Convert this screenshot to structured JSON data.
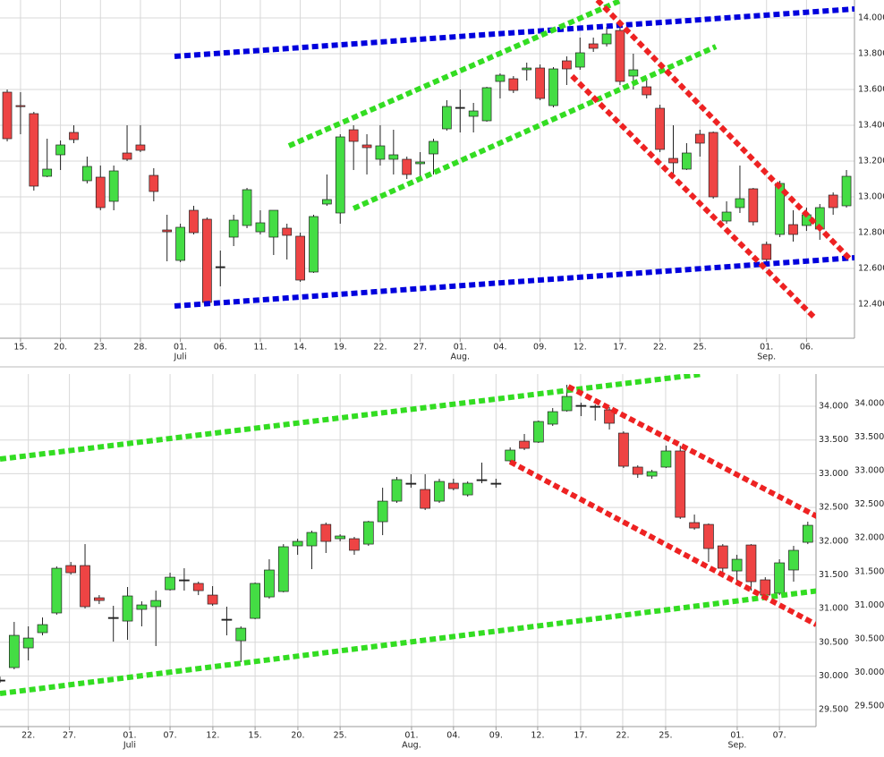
{
  "chart_data": [
    {
      "type": "candlestick",
      "up_color": "#44dd44",
      "down_color": "#ee4444",
      "grid": true,
      "xlim": [
        -0.54,
        63.6
      ],
      "ylim": [
        12210,
        14100
      ],
      "yticks": [
        {
          "value": 12400,
          "label": "12.400"
        },
        {
          "value": 12600,
          "label": "12.600"
        },
        {
          "value": 12800,
          "label": "12.800"
        },
        {
          "value": 13000,
          "label": "13.000"
        },
        {
          "value": 13200,
          "label": "13.200"
        },
        {
          "value": 13400,
          "label": "13.400"
        },
        {
          "value": 13600,
          "label": "13.600"
        },
        {
          "value": 13800,
          "label": "13.800"
        },
        {
          "value": 14000,
          "label": "14.000"
        }
      ],
      "xticks": [
        {
          "value": 1,
          "label": "15."
        },
        {
          "value": 4,
          "label": "20."
        },
        {
          "value": 7,
          "label": "23."
        },
        {
          "value": 10,
          "label": "28."
        },
        {
          "value": 13,
          "label": "01."
        },
        {
          "value": 16,
          "label": "06."
        },
        {
          "value": 19,
          "label": "11."
        },
        {
          "value": 22,
          "label": "14."
        },
        {
          "value": 25,
          "label": "19."
        },
        {
          "value": 28,
          "label": "22."
        },
        {
          "value": 31,
          "label": "27."
        },
        {
          "value": 34,
          "label": "01."
        },
        {
          "value": 37,
          "label": "04."
        },
        {
          "value": 40,
          "label": "09."
        },
        {
          "value": 43,
          "label": "12."
        },
        {
          "value": 46,
          "label": "17."
        },
        {
          "value": 49,
          "label": "22."
        },
        {
          "value": 52,
          "label": "25."
        },
        {
          "value": 57,
          "label": "01."
        },
        {
          "value": 60,
          "label": "06."
        }
      ],
      "month_labels": [
        {
          "value": 13,
          "label": "Juli"
        },
        {
          "value": 34,
          "label": "Aug."
        },
        {
          "value": 57,
          "label": "Sep."
        }
      ],
      "open": [
        13585,
        13510,
        13465,
        13115,
        13235,
        13360,
        13090,
        13110,
        12975,
        13245,
        13290,
        13120,
        12815,
        12645,
        12925,
        12875,
        12610,
        12775,
        12840,
        12805,
        12775,
        12825,
        12780,
        12580,
        12960,
        12910,
        13375,
        13290,
        13210,
        13210,
        13210,
        13185,
        13240,
        13380,
        13500,
        13450,
        13425,
        13645,
        13660,
        13710,
        13720,
        13510,
        13760,
        13725,
        13855,
        13855,
        13930,
        13675,
        13615,
        13495,
        13215,
        13155,
        13350,
        13360,
        12865,
        12940,
        13045,
        12735,
        12790,
        12845,
        12840,
        12820,
        13010,
        12950
      ],
      "high": [
        13600,
        13585,
        13475,
        13325,
        13315,
        13400,
        13225,
        13175,
        13175,
        13400,
        13400,
        13160,
        12900,
        12850,
        12950,
        12885,
        12700,
        12900,
        13050,
        12925,
        12925,
        12850,
        12800,
        12900,
        13125,
        13350,
        13400,
        13350,
        13400,
        13375,
        13225,
        13250,
        13325,
        13540,
        13600,
        13525,
        13615,
        13690,
        13675,
        13750,
        13740,
        13725,
        13785,
        13890,
        13890,
        13950,
        13950,
        13800,
        13650,
        13515,
        13400,
        13300,
        13375,
        13365,
        12975,
        13175,
        13050,
        12750,
        13090,
        12925,
        12940,
        12960,
        13025,
        13150
      ],
      "low": [
        13310,
        13350,
        13035,
        13110,
        13150,
        13300,
        13075,
        12925,
        12925,
        13200,
        13250,
        12975,
        12640,
        12635,
        12790,
        12400,
        12500,
        12725,
        12825,
        12790,
        12675,
        12650,
        12525,
        12575,
        12950,
        12850,
        13150,
        13125,
        13175,
        13125,
        13100,
        13100,
        13125,
        13370,
        13360,
        13360,
        13420,
        13550,
        13580,
        13650,
        13540,
        13500,
        13625,
        13710,
        13810,
        13840,
        13625,
        13600,
        13550,
        13250,
        13125,
        13150,
        13225,
        12990,
        12850,
        12910,
        12840,
        12610,
        12775,
        12750,
        12810,
        12760,
        12900,
        12940
      ],
      "close": [
        13325,
        13505,
        13060,
        13155,
        13290,
        13320,
        13170,
        12940,
        13145,
        13210,
        13260,
        13030,
        12805,
        12830,
        12800,
        12410,
        12610,
        12870,
        13040,
        12855,
        12925,
        12785,
        12535,
        12890,
        12985,
        13335,
        13310,
        13275,
        13285,
        13235,
        13125,
        13195,
        13310,
        13505,
        13500,
        13480,
        13610,
        13680,
        13595,
        13720,
        13550,
        13715,
        13715,
        13805,
        13830,
        13910,
        13645,
        13710,
        13570,
        13265,
        13190,
        13245,
        13300,
        13000,
        12915,
        12990,
        12860,
        12650,
        13075,
        12790,
        12900,
        12940,
        12940,
        13115
      ],
      "trendlines": [
        {
          "color": "#0000dd",
          "x": [
            12.56,
            63.6
          ],
          "values": [
            13785,
            14050
          ]
        },
        {
          "color": "#0000dd",
          "x": [
            12.56,
            63.6
          ],
          "values": [
            12390,
            12660
          ]
        },
        {
          "color": "#33dd22",
          "x": [
            21.15,
            46.13
          ],
          "values": [
            13285,
            14100
          ]
        },
        {
          "color": "#33dd22",
          "x": [
            26.0,
            53.2
          ],
          "values": [
            12935,
            13840
          ]
        },
        {
          "color": "#ee2222",
          "x": [
            44.3,
            63.3
          ],
          "values": [
            14100,
            12650
          ]
        },
        {
          "color": "#ee2222",
          "x": [
            42.4,
            60.6
          ],
          "values": [
            13675,
            12325
          ]
        }
      ]
    },
    {
      "type": "candlestick",
      "up_color": "#44dd44",
      "down_color": "#ee4444",
      "grid": true,
      "xlim": [
        0,
        57.58
      ],
      "ylim": [
        29250,
        34478
      ],
      "y2lim": [
        29194,
        34439
      ],
      "yticks": [
        {
          "value": 29500,
          "label": "29.500"
        },
        {
          "value": 30000,
          "label": "30.000"
        },
        {
          "value": 30500,
          "label": "30.500"
        },
        {
          "value": 31000,
          "label": "31.000"
        },
        {
          "value": 31500,
          "label": "31.500"
        },
        {
          "value": 32000,
          "label": "32.000"
        },
        {
          "value": 32500,
          "label": "32.500"
        },
        {
          "value": 33000,
          "label": "33.000"
        },
        {
          "value": 33500,
          "label": "33.500"
        },
        {
          "value": 34000,
          "label": "34.000"
        }
      ],
      "y2ticks": [
        {
          "value": 29500,
          "label": "29.500"
        },
        {
          "value": 30000,
          "label": "30.000"
        },
        {
          "value": 30500,
          "label": "30.500"
        },
        {
          "value": 31000,
          "label": "31.000"
        },
        {
          "value": 31500,
          "label": "31.500"
        },
        {
          "value": 32000,
          "label": "32.000"
        },
        {
          "value": 32500,
          "label": "32.500"
        },
        {
          "value": 33000,
          "label": "33.000"
        },
        {
          "value": 33500,
          "label": "33.500"
        },
        {
          "value": 34000,
          "label": "34.000"
        }
      ],
      "xticks": [
        {
          "value": 2,
          "label": "22."
        },
        {
          "value": 4.9,
          "label": "27."
        },
        {
          "value": 9.15,
          "label": "01."
        },
        {
          "value": 12,
          "label": "07."
        },
        {
          "value": 15.02,
          "label": "12."
        },
        {
          "value": 18,
          "label": "15."
        },
        {
          "value": 21.02,
          "label": "20."
        },
        {
          "value": 24,
          "label": "25."
        },
        {
          "value": 29.04,
          "label": "01."
        },
        {
          "value": 32,
          "label": "04."
        },
        {
          "value": 35,
          "label": "09."
        },
        {
          "value": 37.94,
          "label": "12."
        },
        {
          "value": 40.97,
          "label": "17."
        },
        {
          "value": 43.94,
          "label": "22."
        },
        {
          "value": 46.97,
          "label": "25."
        },
        {
          "value": 52.02,
          "label": "01."
        },
        {
          "value": 55,
          "label": "07."
        }
      ],
      "month_labels": [
        {
          "value": 9.15,
          "label": "Juli"
        },
        {
          "value": 29.04,
          "label": "Aug."
        },
        {
          "value": 52.02,
          "label": "Sep."
        }
      ],
      "open": [
        29940,
        30125,
        30417,
        30643,
        30935,
        31638,
        31638,
        31160,
        30868,
        30815,
        30988,
        31028,
        31280,
        31426,
        31373,
        31200,
        30842,
        30523,
        30855,
        31173,
        31253,
        31930,
        31930,
        32248,
        32036,
        32036,
        31956,
        32288,
        32593,
        32859,
        32766,
        32593,
        32859,
        32686,
        32912,
        32859,
        33191,
        33482,
        33469,
        33735,
        33934,
        34013,
        34000,
        33947,
        33602,
        33098,
        32965,
        33098,
        33337,
        32275,
        32248,
        31930,
        31558,
        31943,
        31426,
        31227,
        31572,
        31983
      ],
      "high": [
        29990,
        30802,
        30736,
        30868,
        31625,
        31691,
        31956,
        31200,
        31041,
        31320,
        31107,
        31266,
        31532,
        31598,
        31399,
        31333,
        31028,
        30736,
        31386,
        31731,
        31956,
        32036,
        32155,
        32275,
        32102,
        32063,
        32301,
        32792,
        32952,
        32992,
        32992,
        32925,
        32925,
        32885,
        33164,
        32925,
        33390,
        33589,
        33788,
        33973,
        34318,
        34053,
        34027,
        33987,
        33628,
        33124,
        33058,
        33416,
        33416,
        32394,
        32262,
        31956,
        31797,
        31956,
        31465,
        31731,
        31930,
        32288
      ],
      "low": [
        29900,
        30099,
        30231,
        30603,
        30908,
        31505,
        31001,
        31067,
        30510,
        30537,
        30736,
        30444,
        31266,
        31266,
        31200,
        31041,
        30603,
        30205,
        30842,
        31147,
        31240,
        31797,
        31585,
        31824,
        31996,
        31797,
        31930,
        32089,
        32567,
        32792,
        32461,
        32567,
        32753,
        32660,
        32859,
        32792,
        33151,
        33350,
        33456,
        33708,
        33920,
        33854,
        33788,
        33655,
        33084,
        32938,
        32925,
        33084,
        32328,
        32169,
        31691,
        31532,
        31399,
        31266,
        31134,
        31200,
        31399,
        31956
      ],
      "close": [
        29940,
        30603,
        30563,
        30762,
        31598,
        31532,
        31028,
        31120,
        30868,
        31187,
        31054,
        31120,
        31465,
        31426,
        31266,
        31067,
        30842,
        30709,
        31373,
        31572,
        31917,
        31996,
        32129,
        31996,
        32076,
        31864,
        32288,
        32593,
        32912,
        32859,
        32487,
        32885,
        32779,
        32859,
        32912,
        32859,
        33350,
        33376,
        33774,
        33920,
        34146,
        34013,
        34000,
        33748,
        33111,
        32991,
        33031,
        33337,
        32354,
        32195,
        31890,
        31598,
        31731,
        31399,
        31200,
        31678,
        31864,
        32235
      ],
      "trendlines": [
        {
          "color": "#33dd22",
          "x": [
            0,
            49.6
          ],
          "values": [
            33217,
            34478
          ]
        },
        {
          "color": "#33dd22",
          "x": [
            0,
            57.8
          ],
          "values": [
            29740,
            31266
          ]
        },
        {
          "color": "#ee2222",
          "x": [
            40.1,
            58.0
          ],
          "values": [
            34292,
            32328
          ]
        },
        {
          "color": "#ee2222",
          "x": [
            36.0,
            57.6
          ],
          "values": [
            33177,
            30762
          ]
        }
      ]
    }
  ]
}
